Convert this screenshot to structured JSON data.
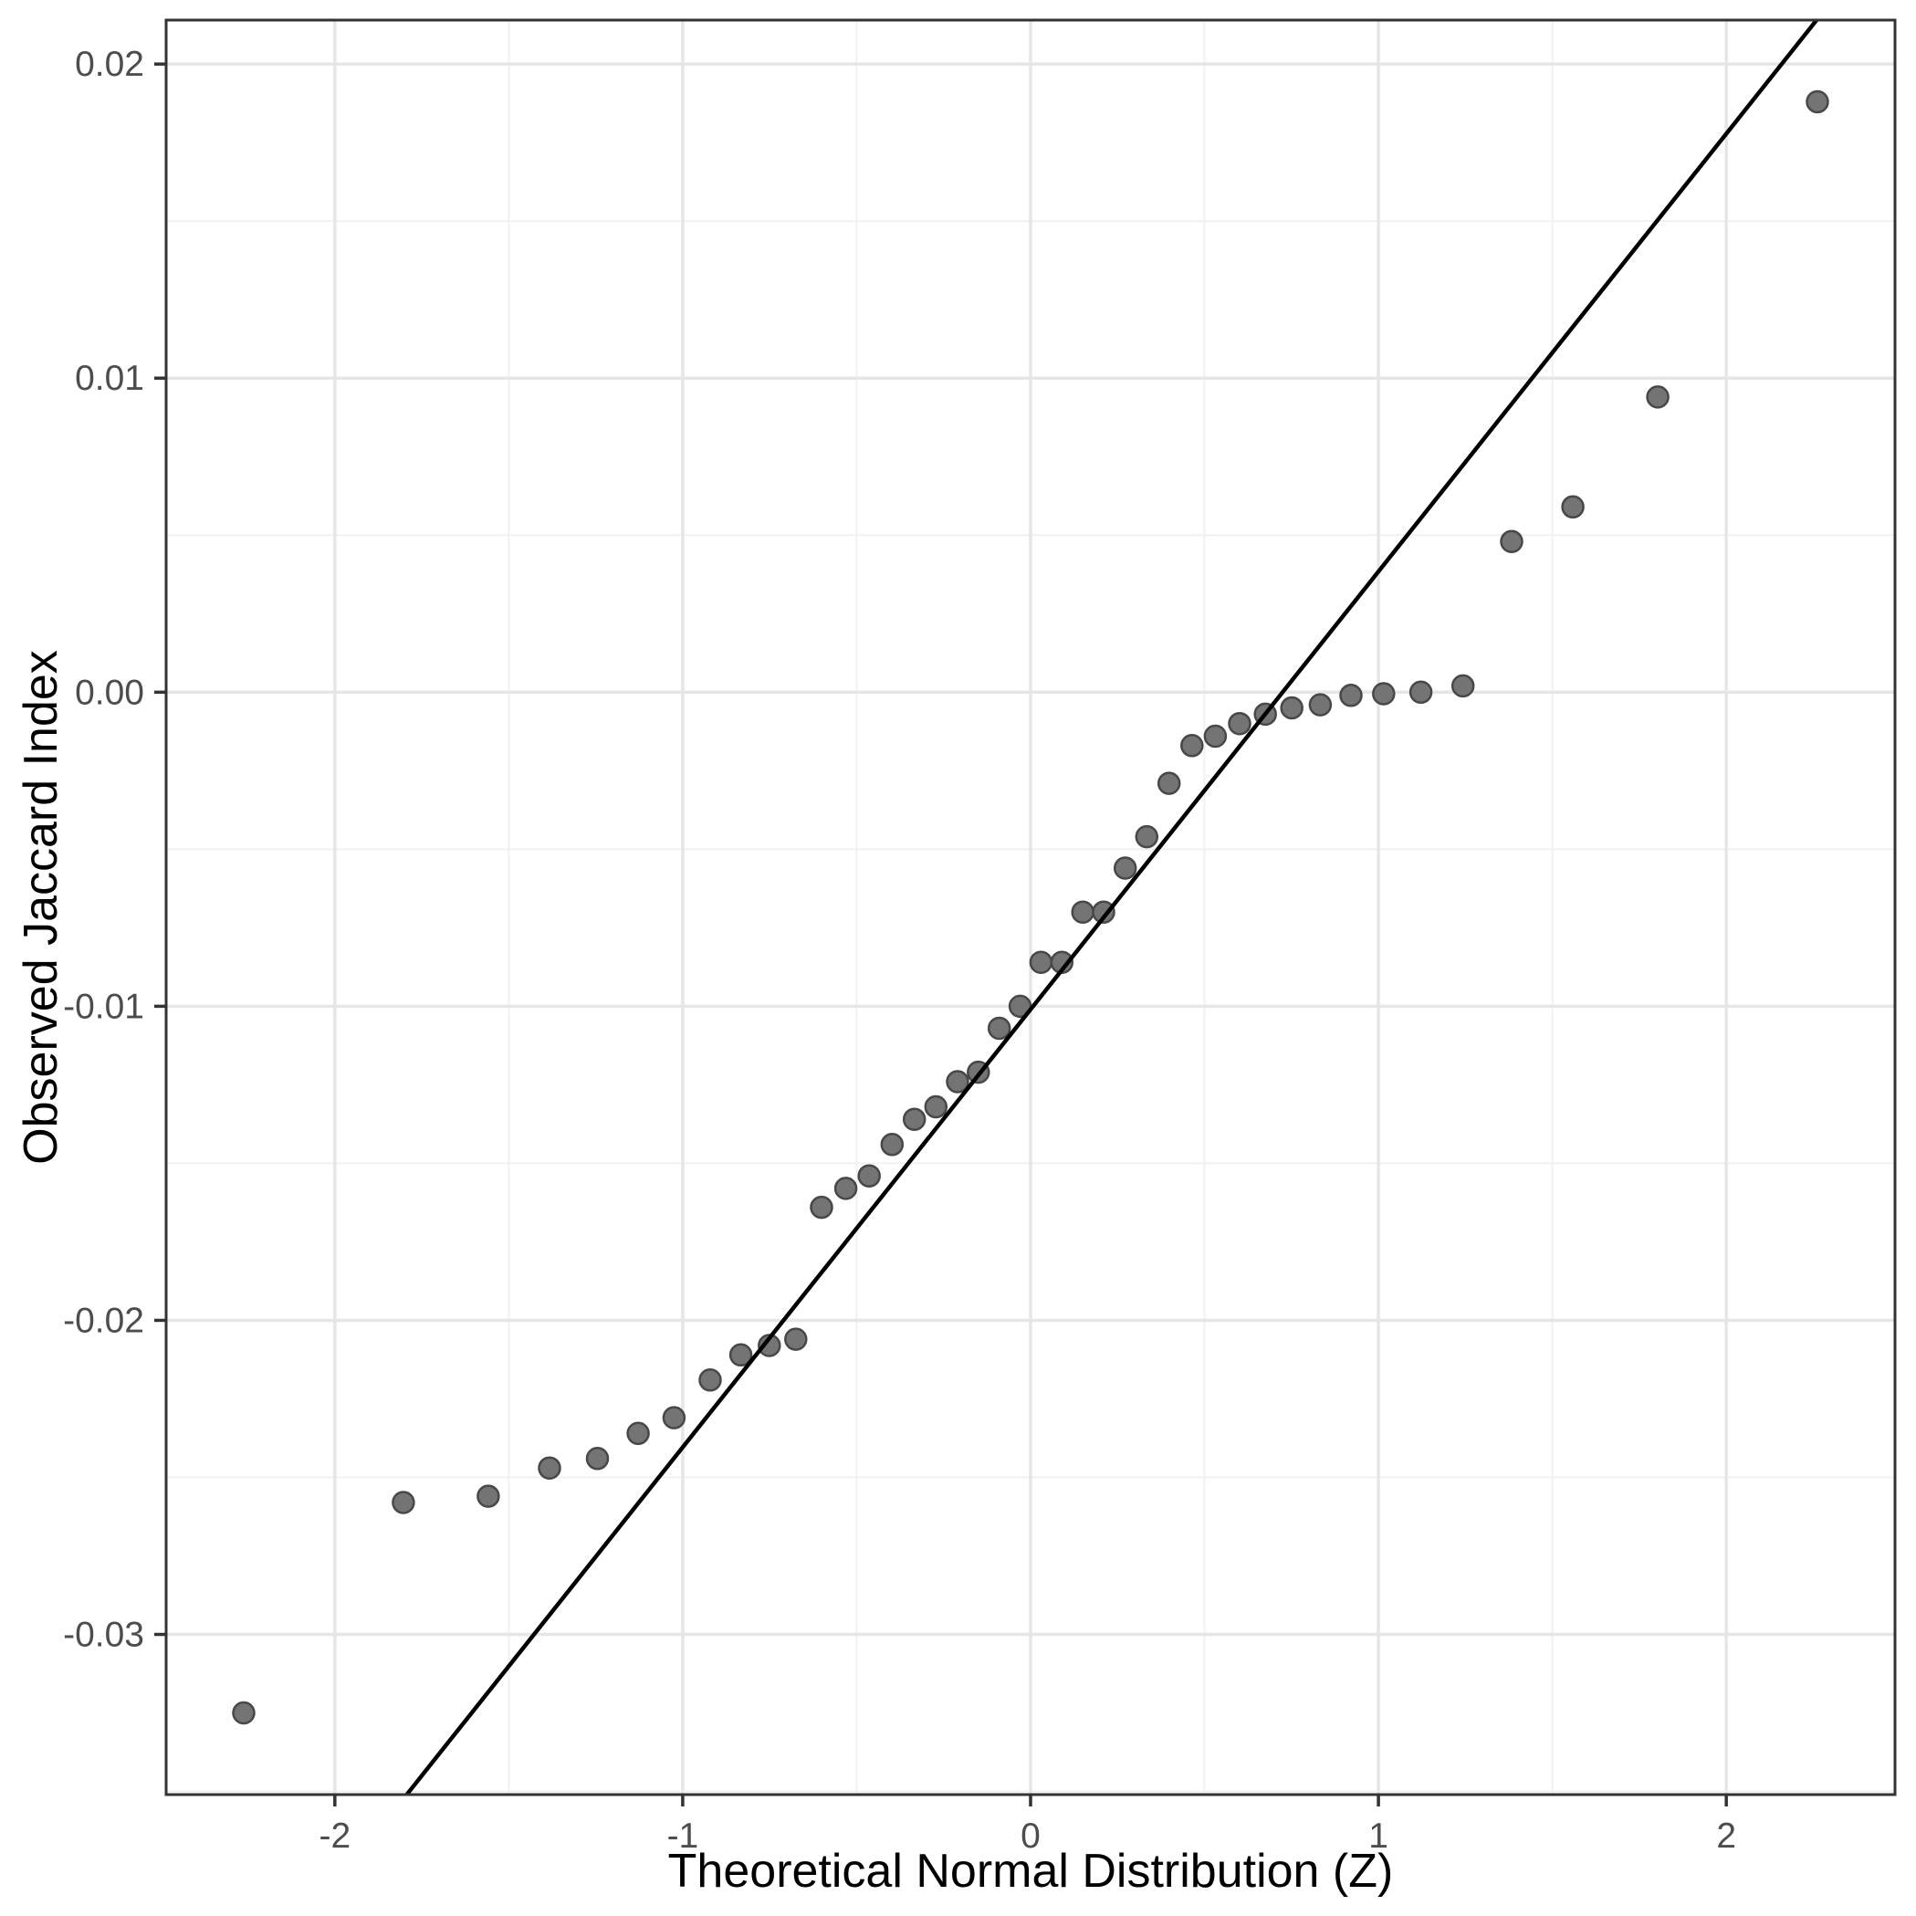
{
  "figure": {
    "background": "#ffffff"
  },
  "chart_data": {
    "type": "scatter",
    "title": "",
    "xlabel": "Theoretical Normal Distribution (Z)",
    "ylabel": "Observed Jaccard Index",
    "xlim": [
      -2.485,
      2.485
    ],
    "ylim": [
      -0.0351,
      0.0214
    ],
    "grid": "major+minor",
    "legend": "none",
    "x_ticks": {
      "values": [
        -2,
        -1,
        0,
        1,
        2
      ],
      "labels": [
        "-2",
        "-1",
        "0",
        "1",
        "2"
      ]
    },
    "y_ticks": {
      "values": [
        0.02,
        0.01,
        0.0,
        -0.01,
        -0.02,
        -0.03
      ],
      "labels": [
        "0.02",
        "0.01",
        "0.00",
        "-0.01",
        "-0.02",
        "-0.03"
      ]
    },
    "x_minor": [
      -1.5,
      -0.5,
      0.5,
      1.5
    ],
    "y_minor": [
      0.015,
      0.005,
      -0.005,
      -0.015,
      -0.025,
      -0.035
    ],
    "points": [
      [
        -2.262,
        -0.0325
      ],
      [
        -1.803,
        -0.0258
      ],
      [
        -1.559,
        -0.0256
      ],
      [
        -1.383,
        -0.0247
      ],
      [
        -1.245,
        -0.0244
      ],
      [
        -1.128,
        -0.0236
      ],
      [
        -1.025,
        -0.0231
      ],
      [
        -0.921,
        -0.0219
      ],
      [
        -0.833,
        -0.0211
      ],
      [
        -0.751,
        -0.0208
      ],
      [
        -0.675,
        -0.0206
      ],
      [
        -0.601,
        -0.0164
      ],
      [
        -0.531,
        -0.0158
      ],
      [
        -0.464,
        -0.0154
      ],
      [
        -0.398,
        -0.0144
      ],
      [
        -0.334,
        -0.0136
      ],
      [
        -0.272,
        -0.0132
      ],
      [
        -0.21,
        -0.0124
      ],
      [
        -0.15,
        -0.0121
      ],
      [
        -0.09,
        -0.0107
      ],
      [
        -0.03,
        -0.01
      ],
      [
        0.03,
        -0.0086
      ],
      [
        0.09,
        -0.0086
      ],
      [
        0.15,
        -0.007
      ],
      [
        0.21,
        -0.007
      ],
      [
        0.272,
        -0.0056
      ],
      [
        0.334,
        -0.0046
      ],
      [
        0.398,
        -0.0029
      ],
      [
        0.464,
        -0.0017
      ],
      [
        0.531,
        -0.0014
      ],
      [
        0.601,
        -0.001
      ],
      [
        0.675,
        -0.0007
      ],
      [
        0.751,
        -0.0005
      ],
      [
        0.833,
        -0.0004
      ],
      [
        0.921,
        -0.0001
      ],
      [
        1.015,
        -5e-05
      ],
      [
        1.122,
        0.0
      ],
      [
        1.243,
        0.0002
      ],
      [
        1.383,
        0.0048
      ],
      [
        1.559,
        0.0059
      ],
      [
        1.803,
        0.0094
      ],
      [
        2.262,
        0.0188
      ]
    ],
    "reference_line": {
      "slope": 0.01394,
      "intercept": -0.0101
    },
    "style": {
      "point_fill": "#747474",
      "point_stroke": "#484848",
      "line_color": "#000000",
      "grid_major": "#e6e6e6",
      "grid_minor": "#f1f1f1",
      "panel_border": "#333333",
      "tick_color": "#333333",
      "tick_label_color": "#4d4d4d",
      "axis_title_color": "#000000"
    }
  }
}
